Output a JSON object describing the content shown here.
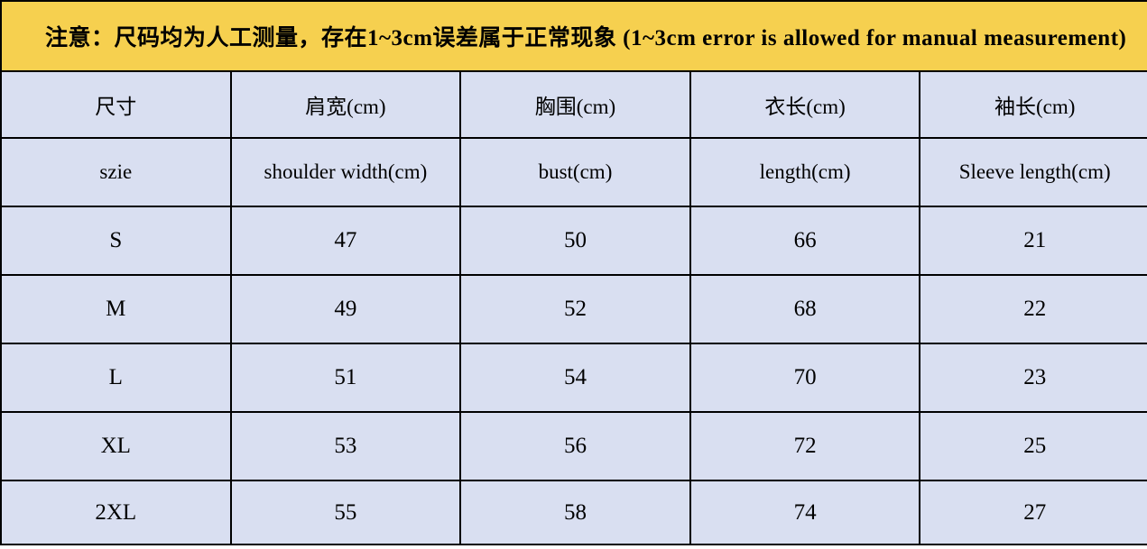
{
  "notice": {
    "text": "注意：尺码均为人工测量，存在1~3cm误差属于正常现象 (1~3cm error is allowed for manual measurement)"
  },
  "table": {
    "header_cn": [
      "尺寸",
      "肩宽(cm)",
      "胸围(cm)",
      "衣长(cm)",
      "袖长(cm)"
    ],
    "header_en": [
      "szie",
      "shoulder width(cm)",
      "bust(cm)",
      "length(cm)",
      "Sleeve length(cm)"
    ],
    "rows": [
      {
        "size": "S",
        "values": [
          "47",
          "50",
          "66",
          "21"
        ]
      },
      {
        "size": "M",
        "values": [
          "49",
          "52",
          "68",
          "22"
        ]
      },
      {
        "size": "L",
        "values": [
          "51",
          "54",
          "70",
          "23"
        ]
      },
      {
        "size": "XL",
        "values": [
          "53",
          "56",
          "72",
          "25"
        ]
      },
      {
        "size": "2XL",
        "values": [
          "55",
          "58",
          "74",
          "27"
        ]
      }
    ]
  },
  "colors": {
    "banner_background": "#F6D04F",
    "cell_background": "#D9DFF1",
    "border": "#000000",
    "text": "#000000"
  }
}
